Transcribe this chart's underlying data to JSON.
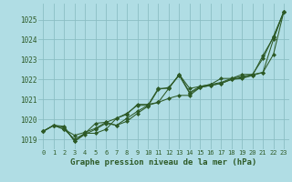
{
  "title": "",
  "xlabel": "Graphe pression niveau de la mer (hPa)",
  "bg_color": "#b0dde4",
  "grid_color": "#8bbec4",
  "line_color": "#2d5a27",
  "ylim": [
    1018.5,
    1025.8
  ],
  "xlim": [
    -0.5,
    23.5
  ],
  "yticks": [
    1019,
    1020,
    1021,
    1022,
    1023,
    1024,
    1025
  ],
  "xticks": [
    0,
    1,
    2,
    3,
    4,
    5,
    6,
    7,
    8,
    9,
    10,
    11,
    12,
    13,
    14,
    15,
    16,
    17,
    18,
    19,
    20,
    21,
    22,
    23
  ],
  "series": [
    [
      1019.4,
      1019.7,
      1019.65,
      1018.9,
      1019.25,
      1019.5,
      1019.8,
      1019.7,
      1019.9,
      1020.3,
      1020.65,
      1021.5,
      1021.6,
      1022.2,
      1021.3,
      1021.6,
      1021.7,
      1021.8,
      1022.0,
      1022.05,
      1022.2,
      1023.2,
      1024.1,
      1025.4
    ],
    [
      1019.4,
      1019.7,
      1019.5,
      1019.0,
      1019.3,
      1019.3,
      1019.5,
      1020.05,
      1020.3,
      1020.7,
      1020.7,
      1020.85,
      1021.05,
      1021.2,
      1021.2,
      1021.6,
      1021.7,
      1021.8,
      1022.0,
      1022.1,
      1022.2,
      1022.35,
      1024.0,
      1025.4
    ],
    [
      1019.4,
      1019.7,
      1019.6,
      1018.9,
      1019.3,
      1019.8,
      1019.85,
      1019.7,
      1020.05,
      1020.4,
      1020.7,
      1021.55,
      1021.55,
      1022.25,
      1021.35,
      1021.65,
      1021.75,
      1021.85,
      1022.05,
      1022.15,
      1022.25,
      1023.05,
      1024.15,
      1025.4
    ],
    [
      1019.4,
      1019.7,
      1019.5,
      1019.2,
      1019.35,
      1019.55,
      1019.85,
      1020.05,
      1020.25,
      1020.75,
      1020.75,
      1020.85,
      1021.55,
      1022.25,
      1021.55,
      1021.65,
      1021.75,
      1022.05,
      1022.05,
      1022.25,
      1022.25,
      1022.35,
      1023.25,
      1025.4
    ]
  ]
}
